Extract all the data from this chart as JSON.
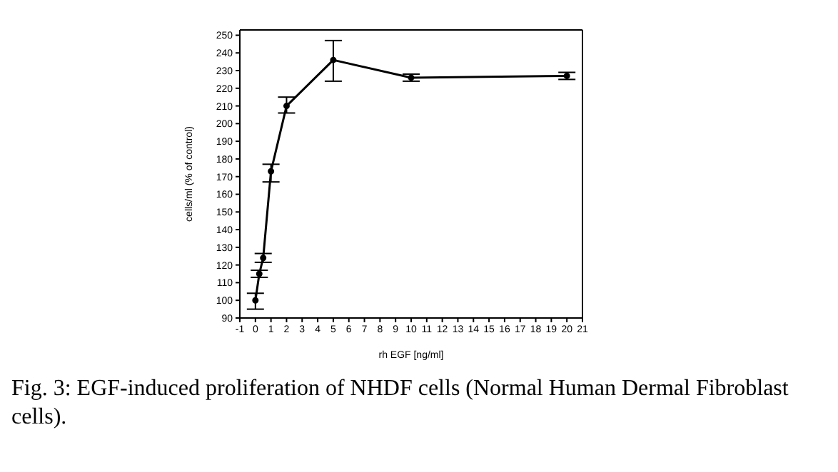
{
  "chart_data": {
    "type": "line",
    "xlabel": "rh EGF [ng/ml]",
    "ylabel": "cells/ml (% of control)",
    "x": [
      0,
      0.25,
      0.5,
      1,
      2,
      5,
      10,
      20
    ],
    "series": [
      {
        "color": "#000000",
        "values": [
          100,
          115,
          124,
          173,
          210,
          236,
          226,
          227
        ],
        "errors": [
          [
            95,
            104
          ],
          2,
          2.5,
          [
            167,
            177
          ],
          [
            206,
            215
          ],
          [
            224,
            247
          ],
          2,
          2
        ]
      }
    ],
    "xlim": [
      -1,
      21
    ],
    "xticks": [
      -1,
      0,
      1,
      2,
      3,
      4,
      5,
      6,
      7,
      8,
      9,
      10,
      11,
      12,
      13,
      14,
      15,
      16,
      17,
      18,
      19,
      20,
      21
    ],
    "ylim": [
      90,
      253
    ],
    "yticks": [
      90,
      100,
      110,
      120,
      130,
      140,
      150,
      160,
      170,
      180,
      190,
      200,
      210,
      220,
      230,
      240,
      250
    ],
    "grid": false,
    "legend": false,
    "marker": "circle",
    "line_style": "solid",
    "annotations": [
      "Fig. 3: EGF-induced proliferation of NHDF cells (Normal Human Dermal Fibroblast cells)."
    ]
  }
}
